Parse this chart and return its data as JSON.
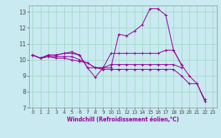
{
  "background_color": "#c8eaf0",
  "line_color": "#990099",
  "grid_color": "#a8d8cc",
  "xlabel": "Windchill (Refroidissement éolien,°C)",
  "xlim": [
    -0.5,
    23.5
  ],
  "ylim": [
    7,
    13.4
  ],
  "yticks": [
    7,
    8,
    9,
    10,
    11,
    12,
    13
  ],
  "xticks": [
    0,
    1,
    2,
    3,
    4,
    5,
    6,
    7,
    8,
    9,
    10,
    11,
    12,
    13,
    14,
    15,
    16,
    17,
    18,
    19,
    20,
    21,
    22,
    23
  ],
  "series": [
    {
      "x": [
        0,
        1,
        2,
        3,
        4,
        5,
        6,
        7,
        8,
        9,
        10,
        11,
        12,
        13,
        14,
        15,
        16,
        17,
        18,
        19,
        20,
        21,
        22
      ],
      "y": [
        10.3,
        10.1,
        10.3,
        10.3,
        10.4,
        10.5,
        10.3,
        9.5,
        8.9,
        9.5,
        9.5,
        11.6,
        11.5,
        11.8,
        12.2,
        13.2,
        13.2,
        12.8,
        10.6,
        9.7,
        9.0,
        8.5,
        7.5
      ]
    },
    {
      "x": [
        0,
        1,
        2,
        3,
        4,
        5,
        6,
        7,
        8,
        9,
        10,
        11,
        12,
        13,
        14,
        15,
        16,
        17,
        18,
        19
      ],
      "y": [
        10.3,
        10.1,
        10.3,
        10.3,
        10.4,
        10.4,
        10.3,
        9.5,
        9.5,
        9.5,
        10.4,
        10.4,
        10.4,
        10.4,
        10.4,
        10.4,
        10.4,
        10.6,
        10.6,
        9.7
      ]
    },
    {
      "x": [
        0,
        1,
        2,
        3,
        4,
        5,
        6,
        7,
        8,
        9,
        10,
        11,
        12,
        13,
        14,
        15,
        16,
        17,
        18,
        19
      ],
      "y": [
        10.3,
        10.1,
        10.2,
        10.2,
        10.2,
        10.2,
        10.0,
        9.8,
        9.5,
        9.5,
        9.7,
        9.7,
        9.7,
        9.7,
        9.7,
        9.7,
        9.7,
        9.7,
        9.7,
        9.5
      ]
    },
    {
      "x": [
        0,
        1,
        2,
        3,
        4,
        5,
        6,
        7,
        8,
        9,
        10,
        11,
        12,
        13,
        14,
        15,
        16,
        17,
        18,
        19,
        20,
        21,
        22
      ],
      "y": [
        10.3,
        10.1,
        10.2,
        10.1,
        10.1,
        10.0,
        9.9,
        9.8,
        9.5,
        9.4,
        9.4,
        9.4,
        9.4,
        9.4,
        9.4,
        9.4,
        9.4,
        9.4,
        9.4,
        9.0,
        8.5,
        8.5,
        7.4
      ]
    }
  ]
}
